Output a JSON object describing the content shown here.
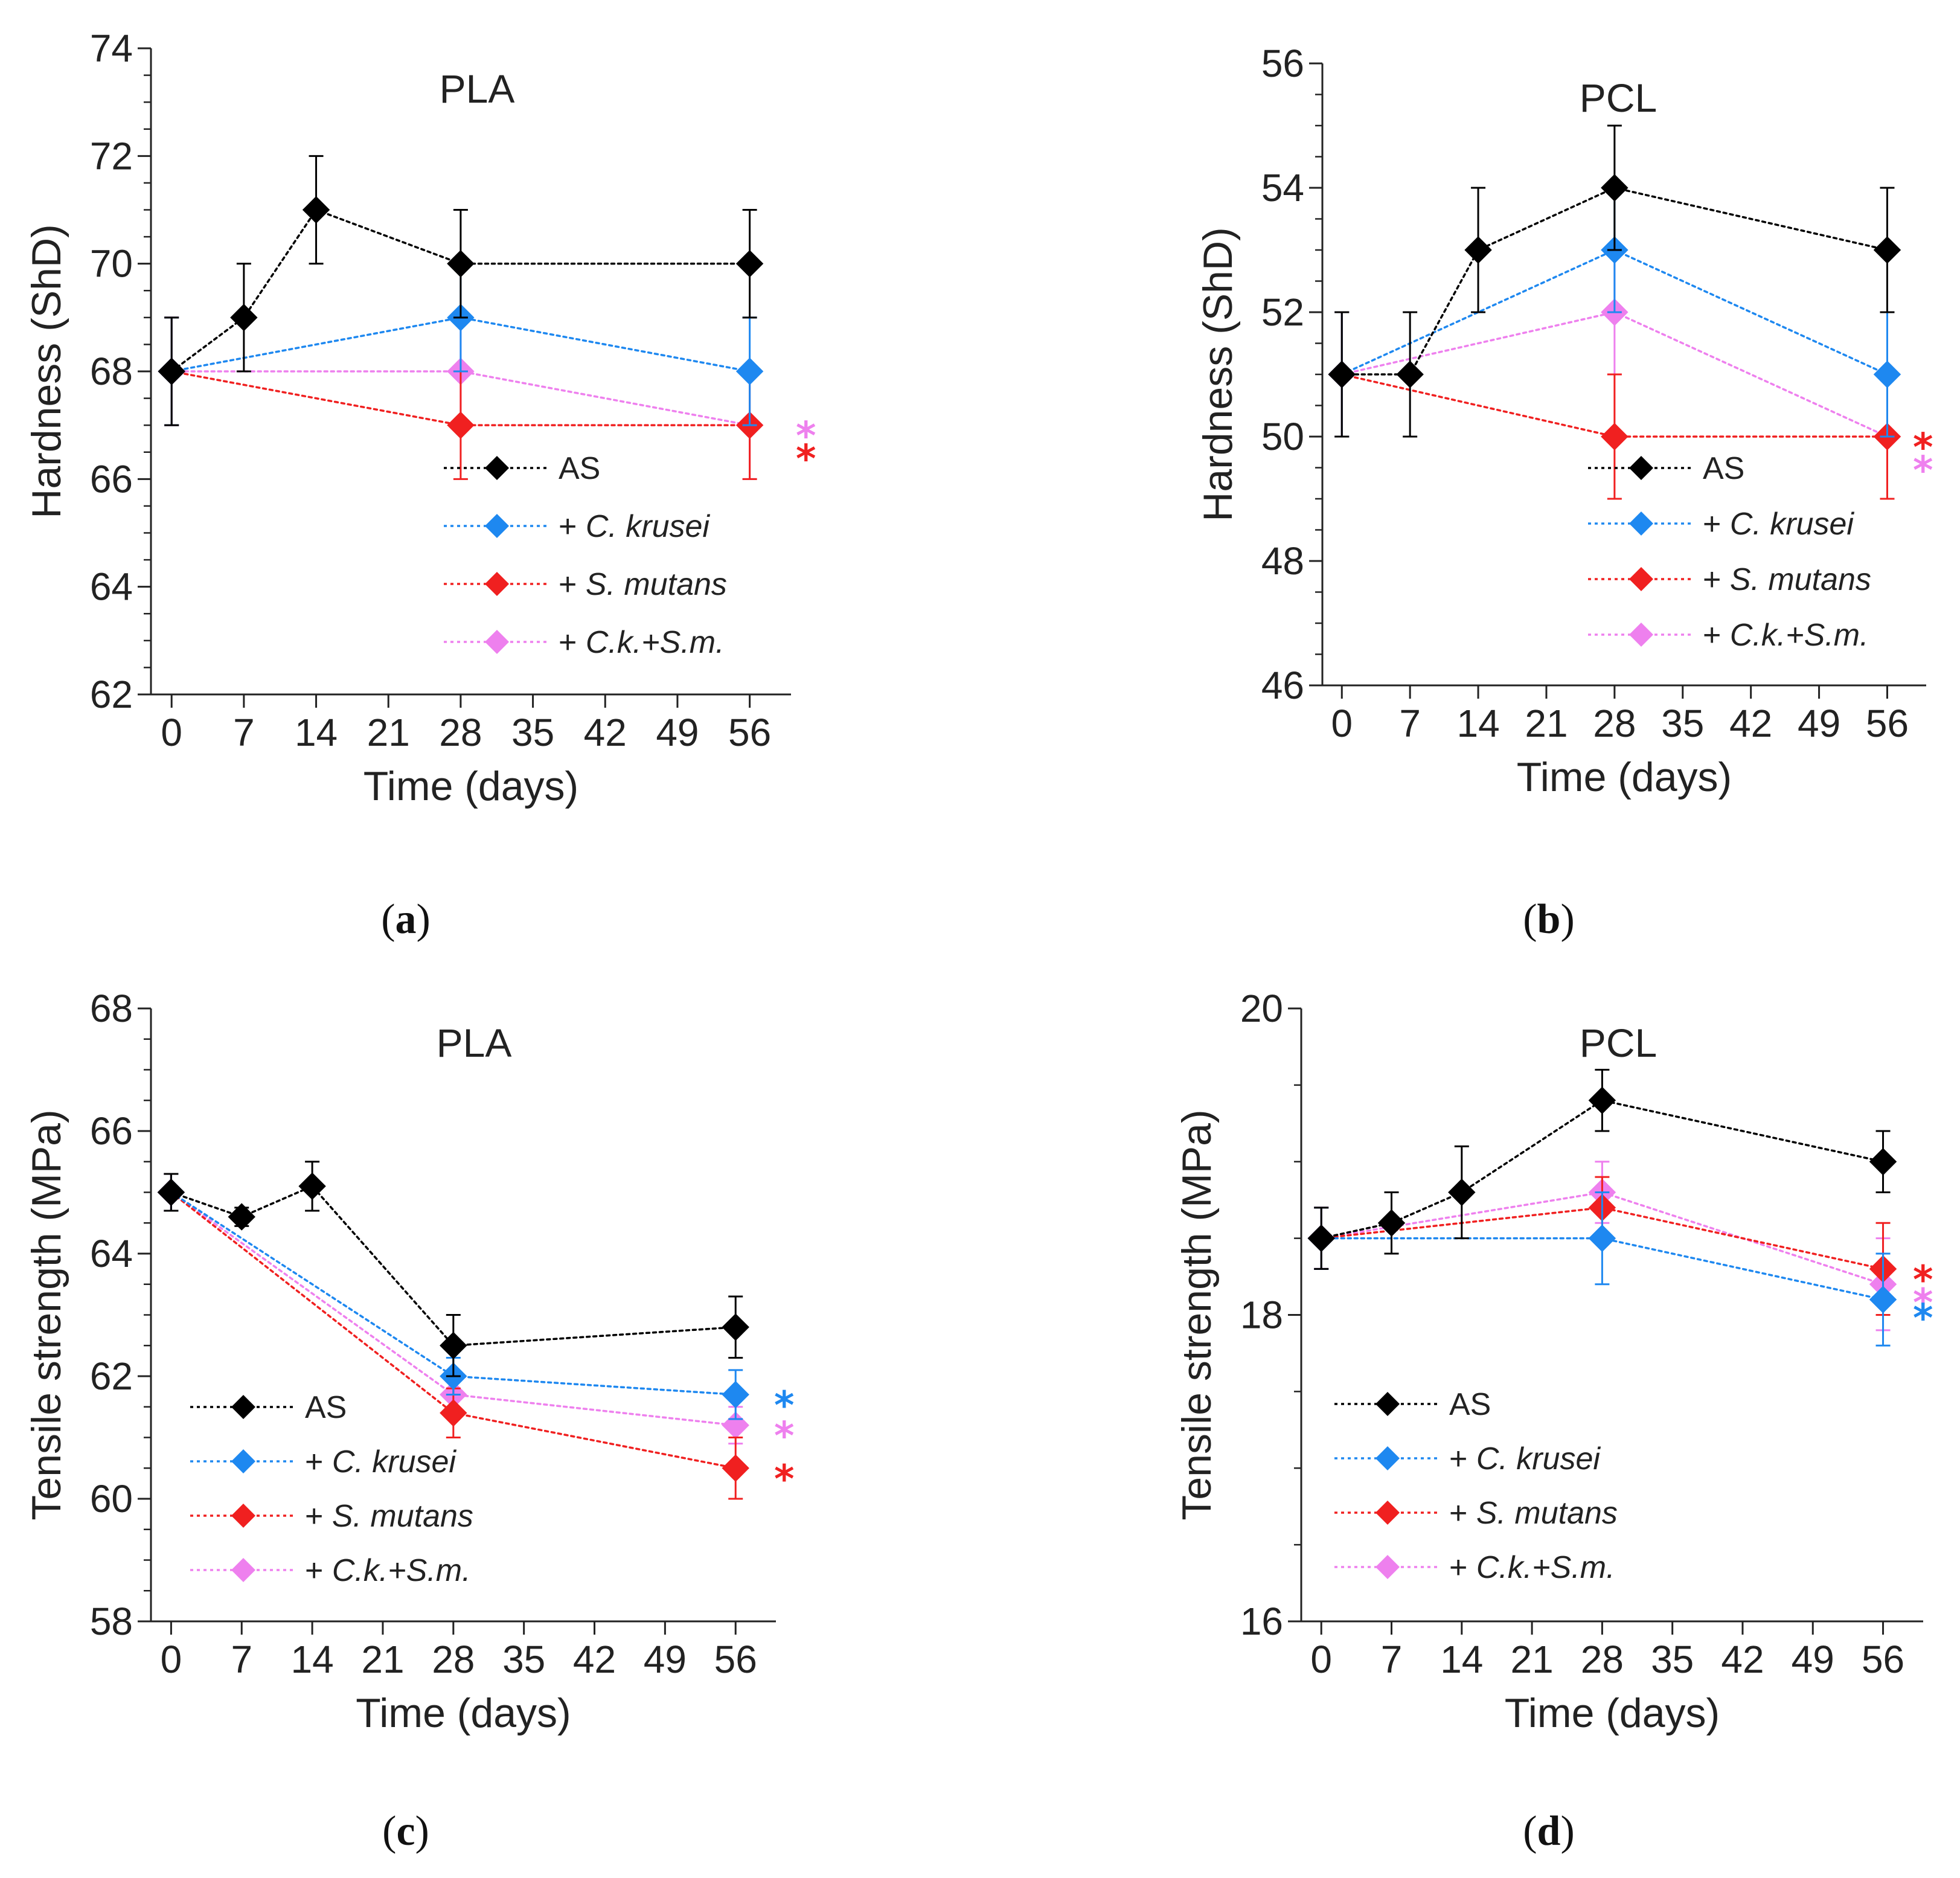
{
  "colors": {
    "AS": "#000000",
    "Ck": "#1e88f0",
    "Sm": "#f02020",
    "CkSm": "#ee80ee"
  },
  "chart_data": [
    {
      "type": "line",
      "panel": "(a)",
      "title": "PLA",
      "xlabel": "Time (days)",
      "ylabel": "Hardness (ShD)",
      "xlim": [
        -2,
        60
      ],
      "ylim": [
        62,
        74
      ],
      "xticks": [
        0,
        7,
        14,
        21,
        28,
        35,
        42,
        49,
        56
      ],
      "yticks": [
        62,
        64,
        66,
        68,
        70,
        72,
        74
      ],
      "legend_position": "lower-right",
      "series": [
        {
          "key": "AS",
          "prefix": "",
          "name": "AS",
          "color": "#000000",
          "x": [
            0,
            7,
            14,
            28,
            56
          ],
          "values": [
            68,
            69,
            71,
            70,
            70
          ],
          "errors": [
            1,
            1,
            1,
            1,
            1
          ],
          "significant": false
        },
        {
          "key": "Ck",
          "prefix": "+ ",
          "name": "C. krusei",
          "color": "#1e88f0",
          "x": [
            0,
            28,
            56
          ],
          "values": [
            68,
            69,
            68
          ],
          "errors": [
            1,
            1,
            1
          ],
          "significant": false
        },
        {
          "key": "Sm",
          "prefix": "+ ",
          "name": "S. mutans",
          "color": "#f02020",
          "x": [
            0,
            28,
            56
          ],
          "values": [
            68,
            67,
            67
          ],
          "errors": [
            1,
            1,
            1
          ],
          "significant": true
        },
        {
          "key": "CkSm",
          "prefix": "+ ",
          "name": "C.k.+S.m.",
          "color": "#ee80ee",
          "x": [
            0,
            28,
            56
          ],
          "values": [
            68,
            68,
            67
          ],
          "errors": [
            1,
            1,
            1
          ],
          "significant": true
        }
      ],
      "significance_order": [
        "CkSm",
        "Sm"
      ],
      "significance_marker": "*"
    },
    {
      "type": "line",
      "panel": "(b)",
      "title": "PCL",
      "xlabel": "Time (days)",
      "ylabel": "Hardness (ShD)",
      "xlim": [
        -2,
        60
      ],
      "ylim": [
        46,
        56
      ],
      "xticks": [
        0,
        7,
        14,
        21,
        28,
        35,
        42,
        49,
        56
      ],
      "yticks": [
        46,
        48,
        50,
        52,
        54,
        56
      ],
      "legend_position": "lower-right",
      "series": [
        {
          "key": "AS",
          "prefix": "",
          "name": "AS",
          "color": "#000000",
          "x": [
            0,
            7,
            14,
            28,
            56
          ],
          "values": [
            51,
            51,
            53,
            54,
            53
          ],
          "errors": [
            1,
            1,
            1,
            1,
            1
          ],
          "significant": false
        },
        {
          "key": "Ck",
          "prefix": "+ ",
          "name": "C. krusei",
          "color": "#1e88f0",
          "x": [
            0,
            28,
            56
          ],
          "values": [
            51,
            53,
            51
          ],
          "errors": [
            1,
            1,
            1
          ],
          "significant": false
        },
        {
          "key": "Sm",
          "prefix": "+ ",
          "name": "S. mutans",
          "color": "#f02020",
          "x": [
            0,
            28,
            56
          ],
          "values": [
            51,
            50,
            50
          ],
          "errors": [
            1,
            1,
            1
          ],
          "significant": true
        },
        {
          "key": "CkSm",
          "prefix": "+ ",
          "name": "C.k.+S.m.",
          "color": "#ee80ee",
          "x": [
            0,
            28,
            56
          ],
          "values": [
            51,
            52,
            50
          ],
          "errors": [
            1,
            1,
            1
          ],
          "significant": true
        }
      ],
      "significance_order": [
        "Sm",
        "CkSm"
      ],
      "significance_marker": "*"
    },
    {
      "type": "line",
      "panel": "(c)",
      "title": "PLA",
      "xlabel": "Time (days)",
      "ylabel": "Tensile strength (MPa)",
      "xlim": [
        -2,
        60
      ],
      "ylim": [
        58,
        68
      ],
      "xticks": [
        0,
        7,
        14,
        21,
        28,
        35,
        42,
        49,
        56
      ],
      "yticks": [
        58,
        60,
        62,
        64,
        66,
        68
      ],
      "legend_position": "lower-left",
      "series": [
        {
          "key": "AS",
          "prefix": "",
          "name": "AS",
          "color": "#000000",
          "x": [
            0,
            7,
            14,
            28,
            56
          ],
          "values": [
            65.0,
            64.6,
            65.1,
            62.5,
            62.8
          ],
          "errors": [
            0.3,
            0.15,
            0.4,
            0.5,
            0.5
          ],
          "significant": false
        },
        {
          "key": "Ck",
          "prefix": "+ ",
          "name": "C. krusei",
          "color": "#1e88f0",
          "x": [
            0,
            28,
            56
          ],
          "values": [
            65.0,
            62.0,
            61.7
          ],
          "errors": [
            0.3,
            0.3,
            0.4
          ],
          "significant": true
        },
        {
          "key": "Sm",
          "prefix": "+ ",
          "name": "S. mutans",
          "color": "#f02020",
          "x": [
            0,
            28,
            56
          ],
          "values": [
            65.0,
            61.4,
            60.5
          ],
          "errors": [
            0.3,
            0.4,
            0.5
          ],
          "significant": true
        },
        {
          "key": "CkSm",
          "prefix": "+ ",
          "name": "C.k.+S.m.",
          "color": "#ee80ee",
          "x": [
            0,
            28,
            56
          ],
          "values": [
            65.0,
            61.7,
            61.2
          ],
          "errors": [
            0.3,
            0.3,
            0.3
          ],
          "significant": true
        }
      ],
      "significance_order": [
        "Ck",
        "CkSm",
        "Sm"
      ],
      "significance_marker": "*"
    },
    {
      "type": "line",
      "panel": "(d)",
      "title": "PCL",
      "xlabel": "Time (days)",
      "ylabel": "Tensile strength (MPa)",
      "xlim": [
        -2,
        60
      ],
      "ylim": [
        16,
        20
      ],
      "xticks": [
        0,
        7,
        14,
        21,
        28,
        35,
        42,
        49,
        56
      ],
      "yticks": [
        16,
        18,
        20
      ],
      "legend_position": "lower-left",
      "series": [
        {
          "key": "AS",
          "prefix": "",
          "name": "AS",
          "color": "#000000",
          "x": [
            0,
            7,
            14,
            28,
            56
          ],
          "values": [
            18.5,
            18.6,
            18.8,
            19.4,
            19.0
          ],
          "errors": [
            0.2,
            0.2,
            0.3,
            0.2,
            0.2
          ],
          "significant": false
        },
        {
          "key": "Ck",
          "prefix": "+ ",
          "name": "C. krusei",
          "color": "#1e88f0",
          "x": [
            0,
            28,
            56
          ],
          "values": [
            18.5,
            18.5,
            18.1
          ],
          "errors": [
            0.2,
            0.3,
            0.3
          ],
          "significant": true
        },
        {
          "key": "Sm",
          "prefix": "+ ",
          "name": "S. mutans",
          "color": "#f02020",
          "x": [
            0,
            28,
            56
          ],
          "values": [
            18.5,
            18.7,
            18.3
          ],
          "errors": [
            0.2,
            0.2,
            0.3
          ],
          "significant": true
        },
        {
          "key": "CkSm",
          "prefix": "+ ",
          "name": "C.k.+S.m.",
          "color": "#ee80ee",
          "x": [
            0,
            28,
            56
          ],
          "values": [
            18.5,
            18.8,
            18.2
          ],
          "errors": [
            0.2,
            0.2,
            0.3
          ],
          "significant": true
        }
      ],
      "significance_order": [
        "Sm",
        "CkSm",
        "Ck"
      ],
      "significance_marker": "*"
    }
  ]
}
